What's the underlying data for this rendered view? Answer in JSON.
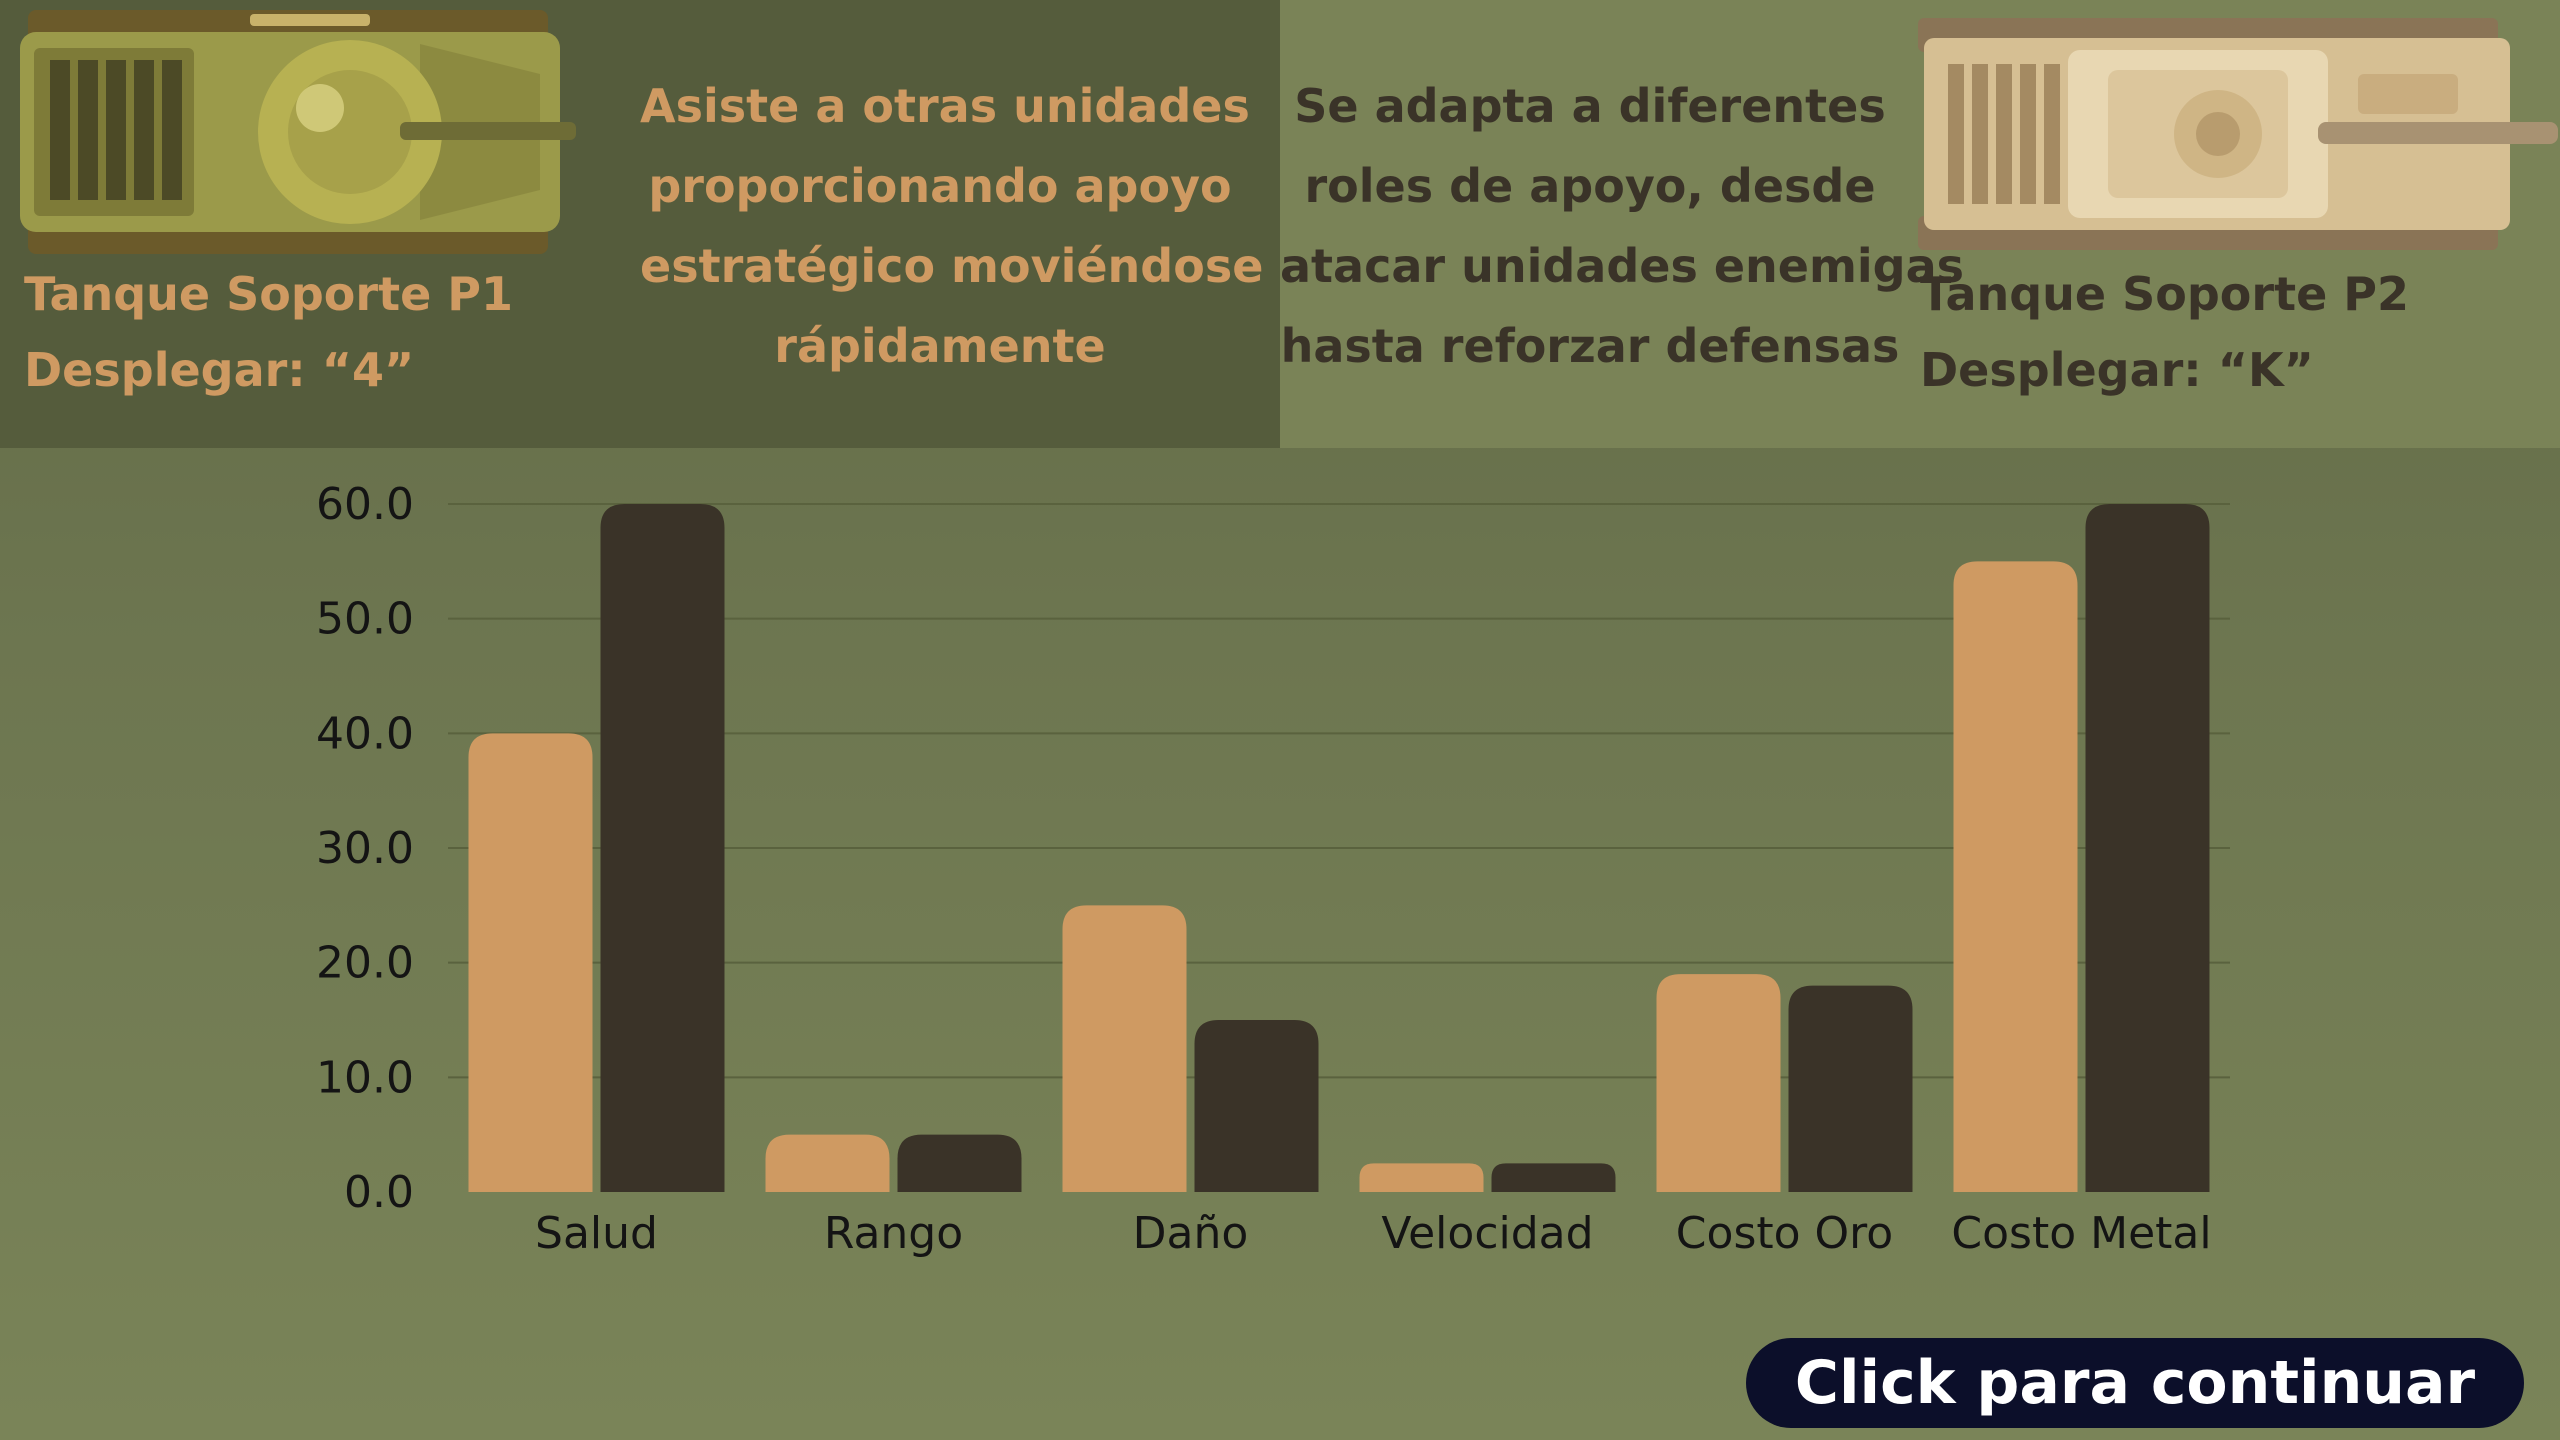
{
  "units": {
    "p1": {
      "name_line1": "Tanque Soporte P1",
      "name_line2": "Desplegar: “4”",
      "description": [
        "Asiste a otras unidades",
        "proporcionando apoyo",
        "estratégico moviéndose",
        "rápidamente"
      ],
      "color": "#cf9a62"
    },
    "p2": {
      "name_line1": "Tanque Soporte P2",
      "name_line2": "Desplegar: “K”",
      "description": [
        "Se adapta a diferentes",
        "roles de apoyo, desde",
        "atacar unidades enemigas",
        "hasta reforzar defensas"
      ],
      "color": "#3a3328"
    }
  },
  "chart_data": {
    "type": "bar",
    "categories": [
      "Salud",
      "Rango",
      "Daño",
      "Velocidad",
      "Costo Oro",
      "Costo Metal"
    ],
    "series": [
      {
        "values": [
          40,
          5,
          25,
          2.5,
          19,
          55
        ],
        "color": "#cf9a62"
      },
      {
        "values": [
          60,
          5,
          15,
          2.5,
          18,
          60
        ],
        "color": "#3a3328"
      }
    ],
    "ylim": [
      0,
      60
    ],
    "yticks": [
      "0.0",
      "10.0",
      "20.0",
      "30.0",
      "40.0",
      "50.0",
      "60.0"
    ],
    "grid": true,
    "legend": false
  },
  "continue_button": {
    "label": "Click para continuar"
  }
}
